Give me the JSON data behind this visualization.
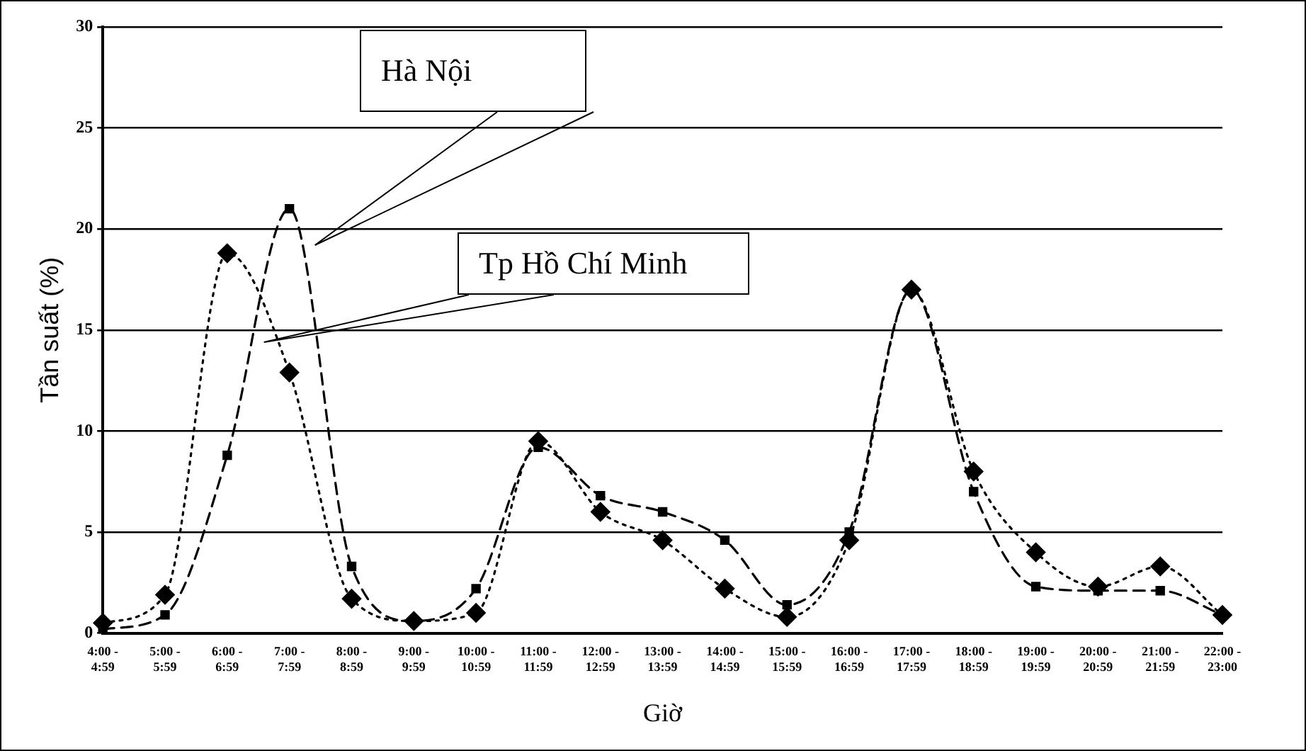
{
  "chart_data": {
    "type": "line",
    "xlabel": "Giờ",
    "ylabel": "Tần suất (%)",
    "categories": [
      "4:00 - 4:59",
      "5:00 - 5:59",
      "6:00 - 6:59",
      "7:00 - 7:59",
      "8:00 - 8:59",
      "9:00 - 9:59",
      "10:00 - 10:59",
      "11:00 - 11:59",
      "12:00 - 12:59",
      "13:00 - 13:59",
      "14:00 - 14:59",
      "15:00 - 15:59",
      "16:00 - 16:59",
      "17:00 - 17:59",
      "18:00 - 18:59",
      "19:00 - 19:59",
      "20:00 - 20:59",
      "21:00 - 21:59",
      "22:00 - 23:00"
    ],
    "series": [
      {
        "name": "Hà Nội",
        "color": "#000000",
        "marker": "square",
        "line_style": "dashed",
        "values": [
          0.2,
          0.9,
          8.8,
          21,
          3.3,
          0.6,
          2.2,
          9.2,
          6.8,
          6,
          4.6,
          1.4,
          5,
          17,
          7,
          2.3,
          2.1,
          2.1,
          0.9
        ]
      },
      {
        "name": "Tp Hồ Chí Minh",
        "color": "#000000",
        "marker": "diamond",
        "line_style": "dotted",
        "values": [
          0.5,
          1.9,
          18.8,
          12.9,
          1.7,
          0.6,
          1,
          9.5,
          6,
          4.6,
          2.2,
          0.8,
          4.6,
          17,
          8,
          4,
          2.3,
          3.3,
          0.9
        ]
      }
    ],
    "ylim": [
      0,
      30
    ],
    "yticks": [
      0,
      5,
      10,
      15,
      20,
      25,
      30
    ],
    "grid": "y",
    "legend": false
  }
}
